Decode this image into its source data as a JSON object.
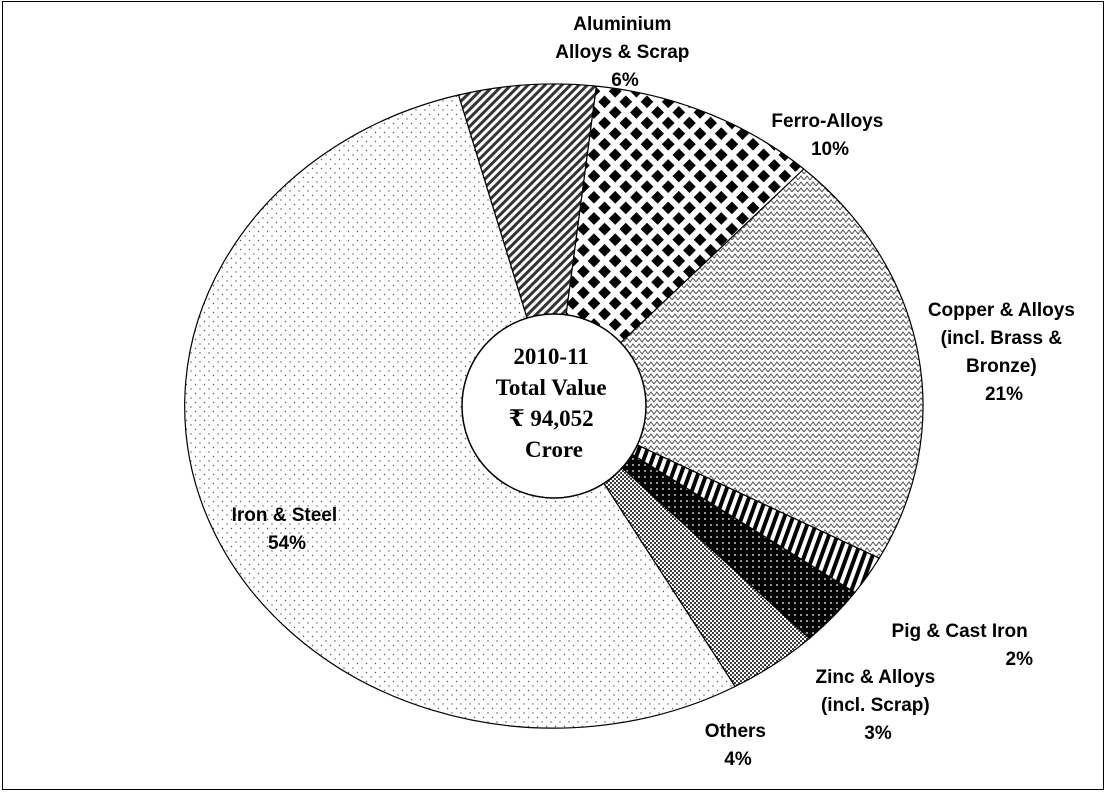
{
  "chart_data": {
    "type": "pie",
    "style": "donut",
    "center_label": [
      "2010-11",
      "Total Value",
      "₹ 94,052",
      "Crore"
    ],
    "slices": [
      {
        "name": "Aluminium Alloys & Scrap",
        "value": 6,
        "label_lines": [
          "Aluminium",
          "Alloys & Scrap",
          "6%"
        ],
        "pattern": "diag-hatch"
      },
      {
        "name": "Ferro-Alloys",
        "value": 10,
        "label_lines": [
          "Ferro-Alloys",
          "10%"
        ],
        "pattern": "diamond-check"
      },
      {
        "name": "Copper & Alloys (incl. Brass & Bronze)",
        "value": 21,
        "label_lines": [
          "Copper & Alloys",
          "(incl. Brass &",
          "Bronze)",
          "21%"
        ],
        "pattern": "zigzag"
      },
      {
        "name": "Pig & Cast Iron",
        "value": 2,
        "label_lines": [
          "Pig & Cast Iron",
          "2%"
        ],
        "pattern": "vertical-stripes"
      },
      {
        "name": "Zinc & Alloys (incl. Scrap)",
        "value": 3,
        "label_lines": [
          "Zinc & Alloys",
          "(incl. Scrap)",
          "3%"
        ],
        "pattern": "dark-dots"
      },
      {
        "name": "Others",
        "value": 4,
        "label_lines": [
          "Others",
          "4%"
        ],
        "pattern": "dense-dots"
      },
      {
        "name": "Iron & Steel",
        "value": 54,
        "label_lines": [
          "Iron & Steel",
          "54%"
        ],
        "pattern": "sparse-dots"
      }
    ],
    "start_angle_deg": 345,
    "direction": "clockwise"
  }
}
